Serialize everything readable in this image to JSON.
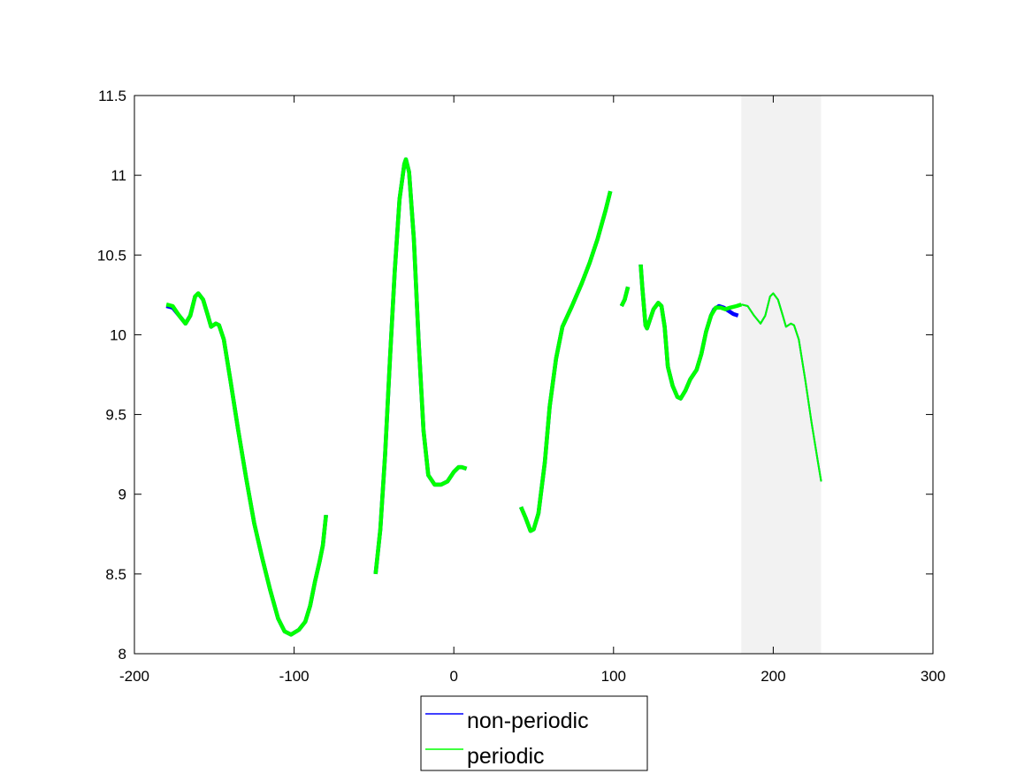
{
  "chart_data": {
    "type": "line",
    "title": "",
    "xlabel": "",
    "ylabel": "",
    "xlim": [
      -200,
      300
    ],
    "ylim": [
      8,
      11.5
    ],
    "xticks": [
      -200,
      -100,
      0,
      100,
      200,
      300
    ],
    "xtick_labels": [
      "-200",
      "-100",
      "0",
      "100",
      "200",
      "300"
    ],
    "yticks": [
      8,
      8.5,
      9,
      9.5,
      10,
      10.5,
      11,
      11.5
    ],
    "ytick_labels": [
      "8",
      "8.5",
      "9",
      "9.5",
      "10",
      "10.5",
      "11",
      "11.5"
    ],
    "grid": false,
    "legend_position": "bottom-center",
    "shaded_region": {
      "x": [
        180,
        230
      ],
      "color": "#f2f2f2"
    },
    "series": [
      {
        "name": "non-periodic",
        "color": "#0000ff",
        "segments": [
          [
            [
              -180,
              10.18
            ],
            [
              -176,
              10.17
            ],
            [
              -172,
              10.12
            ],
            [
              -168,
              10.07
            ],
            [
              -165,
              10.12
            ],
            [
              -162,
              10.24
            ],
            [
              -160,
              10.26
            ],
            [
              -157,
              10.22
            ],
            [
              -154,
              10.12
            ],
            [
              -152,
              10.05
            ],
            [
              -149,
              10.07
            ],
            [
              -147,
              10.06
            ],
            [
              -144,
              9.97
            ],
            [
              -140,
              9.72
            ],
            [
              -135,
              9.4
            ],
            [
              -130,
              9.1
            ],
            [
              -125,
              8.82
            ],
            [
              -120,
              8.6
            ],
            [
              -115,
              8.4
            ],
            [
              -110,
              8.22
            ],
            [
              -106,
              8.14
            ],
            [
              -102,
              8.12
            ],
            [
              -97,
              8.15
            ],
            [
              -93,
              8.2
            ],
            [
              -90,
              8.3
            ],
            [
              -87,
              8.45
            ],
            [
              -84,
              8.58
            ],
            [
              -82,
              8.68
            ],
            [
              -80,
              8.87
            ]
          ],
          [
            [
              -49,
              8.5
            ],
            [
              -46,
              8.78
            ],
            [
              -43,
              9.25
            ],
            [
              -40,
              9.85
            ],
            [
              -37,
              10.4
            ],
            [
              -34,
              10.85
            ],
            [
              -31,
              11.07
            ],
            [
              -30,
              11.1
            ],
            [
              -28,
              11.02
            ],
            [
              -25,
              10.6
            ],
            [
              -22,
              9.95
            ],
            [
              -19,
              9.4
            ],
            [
              -16,
              9.12
            ],
            [
              -12,
              9.06
            ],
            [
              -8,
              9.06
            ],
            [
              -4,
              9.08
            ],
            [
              0,
              9.14
            ],
            [
              3,
              9.17
            ],
            [
              5,
              9.17
            ],
            [
              8,
              9.16
            ]
          ],
          [
            [
              42,
              8.92
            ],
            [
              45,
              8.85
            ],
            [
              48,
              8.77
            ],
            [
              50,
              8.78
            ],
            [
              53,
              8.88
            ],
            [
              57,
              9.2
            ],
            [
              60,
              9.55
            ],
            [
              64,
              9.85
            ],
            [
              68,
              10.05
            ],
            [
              74,
              10.18
            ],
            [
              80,
              10.32
            ],
            [
              85,
              10.45
            ],
            [
              90,
              10.6
            ],
            [
              95,
              10.78
            ],
            [
              98,
              10.9
            ]
          ],
          [
            [
              105,
              10.18
            ],
            [
              107,
              10.22
            ],
            [
              109,
              10.3
            ]
          ],
          [
            [
              117,
              10.44
            ],
            [
              118,
              10.3
            ],
            [
              120,
              10.06
            ],
            [
              121,
              10.04
            ],
            [
              123,
              10.1
            ],
            [
              125,
              10.16
            ],
            [
              128,
              10.2
            ],
            [
              130,
              10.18
            ],
            [
              132,
              10.05
            ],
            [
              134,
              9.8
            ],
            [
              137,
              9.68
            ],
            [
              140,
              9.61
            ],
            [
              142,
              9.6
            ],
            [
              145,
              9.65
            ],
            [
              148,
              9.72
            ],
            [
              152,
              9.78
            ],
            [
              155,
              9.88
            ],
            [
              158,
              10.02
            ],
            [
              161,
              10.12
            ],
            [
              163,
              10.16
            ],
            [
              166,
              10.18
            ],
            [
              169,
              10.17
            ],
            [
              172,
              10.15
            ],
            [
              175,
              10.13
            ],
            [
              178,
              10.12
            ]
          ],
          [
            [
              180,
              10.19
            ],
            [
              184,
              10.18
            ],
            [
              188,
              10.12
            ],
            [
              192,
              10.07
            ],
            [
              195,
              10.12
            ],
            [
              198,
              10.24
            ],
            [
              200,
              10.26
            ],
            [
              203,
              10.22
            ],
            [
              206,
              10.12
            ],
            [
              208,
              10.05
            ],
            [
              211,
              10.07
            ],
            [
              213,
              10.06
            ],
            [
              216,
              9.97
            ],
            [
              220,
              9.72
            ],
            [
              224,
              9.45
            ],
            [
              228,
              9.2
            ],
            [
              230,
              9.08
            ]
          ]
        ]
      },
      {
        "name": "periodic",
        "color": "#00ff00",
        "segments": [
          [
            [
              -180,
              10.19
            ],
            [
              -176,
              10.18
            ],
            [
              -172,
              10.12
            ],
            [
              -168,
              10.07
            ],
            [
              -165,
              10.12
            ],
            [
              -162,
              10.24
            ],
            [
              -160,
              10.26
            ],
            [
              -157,
              10.22
            ],
            [
              -154,
              10.12
            ],
            [
              -152,
              10.05
            ],
            [
              -149,
              10.07
            ],
            [
              -147,
              10.06
            ],
            [
              -144,
              9.97
            ],
            [
              -140,
              9.72
            ],
            [
              -135,
              9.4
            ],
            [
              -130,
              9.1
            ],
            [
              -125,
              8.82
            ],
            [
              -120,
              8.6
            ],
            [
              -115,
              8.4
            ],
            [
              -110,
              8.22
            ],
            [
              -106,
              8.14
            ],
            [
              -102,
              8.12
            ],
            [
              -97,
              8.15
            ],
            [
              -93,
              8.2
            ],
            [
              -90,
              8.3
            ],
            [
              -87,
              8.45
            ],
            [
              -84,
              8.58
            ],
            [
              -82,
              8.68
            ],
            [
              -80,
              8.87
            ]
          ],
          [
            [
              -49,
              8.5
            ],
            [
              -46,
              8.78
            ],
            [
              -43,
              9.25
            ],
            [
              -40,
              9.85
            ],
            [
              -37,
              10.4
            ],
            [
              -34,
              10.85
            ],
            [
              -31,
              11.07
            ],
            [
              -30,
              11.1
            ],
            [
              -28,
              11.02
            ],
            [
              -25,
              10.6
            ],
            [
              -22,
              9.95
            ],
            [
              -19,
              9.4
            ],
            [
              -16,
              9.12
            ],
            [
              -12,
              9.06
            ],
            [
              -8,
              9.06
            ],
            [
              -4,
              9.08
            ],
            [
              0,
              9.14
            ],
            [
              3,
              9.17
            ],
            [
              5,
              9.17
            ],
            [
              8,
              9.16
            ]
          ],
          [
            [
              42,
              8.92
            ],
            [
              45,
              8.85
            ],
            [
              48,
              8.77
            ],
            [
              50,
              8.78
            ],
            [
              53,
              8.88
            ],
            [
              57,
              9.2
            ],
            [
              60,
              9.55
            ],
            [
              64,
              9.85
            ],
            [
              68,
              10.05
            ],
            [
              74,
              10.18
            ],
            [
              80,
              10.32
            ],
            [
              85,
              10.45
            ],
            [
              90,
              10.6
            ],
            [
              95,
              10.78
            ],
            [
              98,
              10.9
            ]
          ],
          [
            [
              105,
              10.18
            ],
            [
              107,
              10.22
            ],
            [
              109,
              10.3
            ]
          ],
          [
            [
              117,
              10.44
            ],
            [
              118,
              10.3
            ],
            [
              120,
              10.06
            ],
            [
              121,
              10.04
            ],
            [
              123,
              10.1
            ],
            [
              125,
              10.16
            ],
            [
              128,
              10.2
            ],
            [
              130,
              10.18
            ],
            [
              132,
              10.05
            ],
            [
              134,
              9.8
            ],
            [
              137,
              9.68
            ],
            [
              140,
              9.61
            ],
            [
              142,
              9.6
            ],
            [
              145,
              9.65
            ],
            [
              148,
              9.72
            ],
            [
              152,
              9.78
            ],
            [
              155,
              9.88
            ],
            [
              158,
              10.02
            ],
            [
              161,
              10.12
            ],
            [
              164,
              10.17
            ],
            [
              167,
              10.17
            ],
            [
              170,
              10.16
            ],
            [
              173,
              10.17
            ],
            [
              177,
              10.18
            ],
            [
              180,
              10.19
            ]
          ],
          [
            [
              180,
              10.19
            ],
            [
              184,
              10.18
            ],
            [
              188,
              10.12
            ],
            [
              192,
              10.07
            ],
            [
              195,
              10.12
            ],
            [
              198,
              10.24
            ],
            [
              200,
              10.26
            ],
            [
              203,
              10.22
            ],
            [
              206,
              10.12
            ],
            [
              208,
              10.05
            ],
            [
              211,
              10.07
            ],
            [
              213,
              10.06
            ],
            [
              216,
              9.97
            ],
            [
              220,
              9.72
            ],
            [
              224,
              9.45
            ],
            [
              228,
              9.2
            ],
            [
              230,
              9.08
            ]
          ]
        ]
      }
    ]
  }
}
